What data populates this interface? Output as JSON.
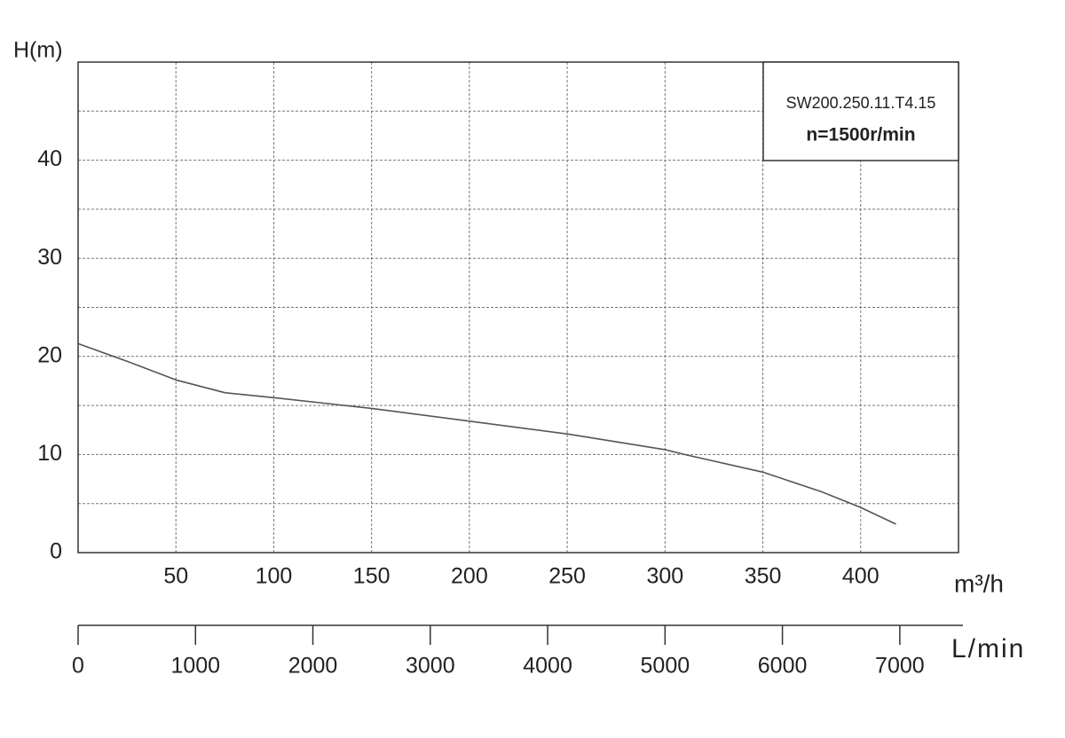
{
  "chart_data": {
    "type": "line",
    "y_label": "H(m)",
    "x_label": "m³/h",
    "x2_label": "L/min",
    "annotation": [
      "SW200.250.11.T4.15",
      "n=1500r/min"
    ],
    "x": [
      0,
      25,
      50,
      75,
      100,
      150,
      200,
      250,
      300,
      310,
      350,
      380,
      400,
      418
    ],
    "series": [
      {
        "name": "H",
        "color": "#555555",
        "values": [
          21.3,
          19.5,
          17.6,
          16.3,
          15.8,
          14.7,
          13.4,
          12.1,
          10.5,
          10.0,
          8.2,
          6.2,
          4.6,
          2.9
        ]
      }
    ],
    "xlim": [
      0,
      450
    ],
    "xticks": [
      50,
      100,
      150,
      200,
      250,
      300,
      350,
      400
    ],
    "ylim": [
      0,
      50
    ],
    "yticks": [
      0,
      10,
      20,
      30,
      40
    ],
    "ygrid": [
      5,
      10,
      15,
      20,
      25,
      30,
      35,
      40,
      45
    ],
    "x2lim": [
      0,
      7500
    ],
    "x2ticks": [
      0,
      1000,
      2000,
      3000,
      4000,
      5000,
      6000,
      7000
    ],
    "grid": true
  }
}
